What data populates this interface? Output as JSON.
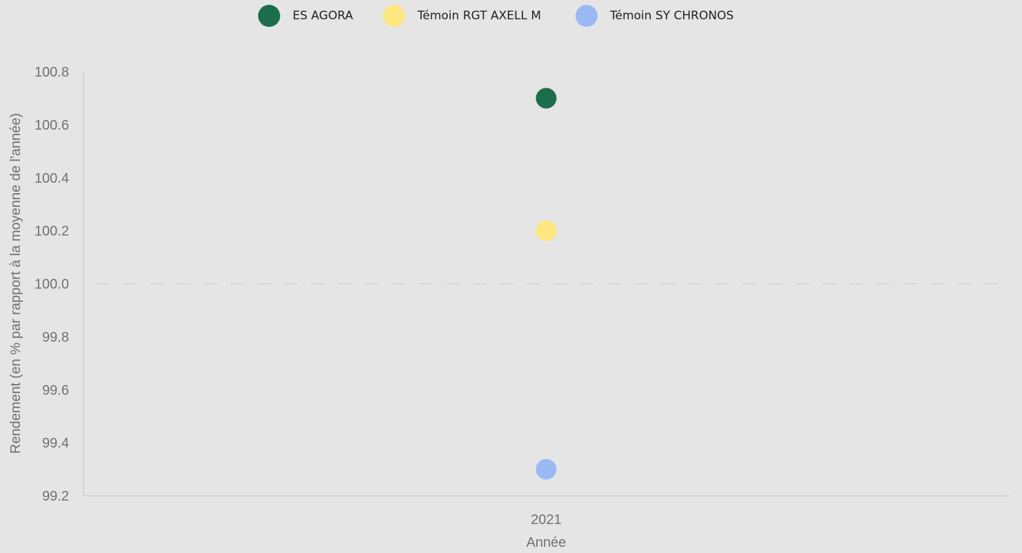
{
  "legend": [
    {
      "label": "ES AGORA",
      "color": "#1c6e4a"
    },
    {
      "label": "Témoin RGT AXELL M",
      "color": "#fde77e"
    },
    {
      "label": "Témoin SY CHRONOS",
      "color": "#9bb9f5"
    }
  ],
  "chart_data": {
    "type": "scatter",
    "title": "",
    "xlabel": "Année",
    "ylabel": "Rendement (en % par rapport à la moyenne de l'année)",
    "categories": [
      "2021"
    ],
    "ylim": [
      99.2,
      100.8
    ],
    "yticks": [
      "100.8",
      "100.6",
      "100.4",
      "100.2",
      "100.0",
      "99.8",
      "99.6",
      "99.4",
      "99.2"
    ],
    "reference_line": {
      "y": 100.0,
      "style": "dashed"
    },
    "grid": false,
    "legend_position": "top",
    "series": [
      {
        "name": "ES AGORA",
        "color": "#1c6e4a",
        "values": [
          100.7
        ]
      },
      {
        "name": "Témoin RGT AXELL M",
        "color": "#fde77e",
        "values": [
          100.2
        ]
      },
      {
        "name": "Témoin SY CHRONOS",
        "color": "#9bb9f5",
        "values": [
          99.3
        ]
      }
    ]
  }
}
